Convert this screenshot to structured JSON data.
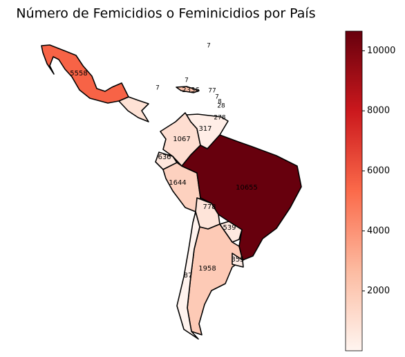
{
  "chart_data": {
    "type": "choropleth",
    "title": "Número de Femicidios o Feminicidios por País",
    "regions": [
      {
        "value": 5558
      },
      {
        "value": 1067
      },
      {
        "value": 317
      },
      {
        "value": 636
      },
      {
        "value": 1644
      },
      {
        "value": 10655
      },
      {
        "value": 778
      },
      {
        "value": 539
      },
      {
        "value": 1958
      },
      {
        "value": 87
      },
      {
        "value": 355
      },
      {
        "value": 2336
      }
    ],
    "small_labels": [
      {
        "value": 7
      },
      {
        "value": 7
      },
      {
        "value": 7
      },
      {
        "value": 77
      },
      {
        "value": 7
      },
      {
        "value": 8
      },
      {
        "value": 28
      },
      {
        "value": 278
      }
    ],
    "colormap": [
      "#fff5f0",
      "#fcbba1",
      "#fb6a4a",
      "#cb181d",
      "#67000d"
    ],
    "clim": [
      7,
      10655
    ],
    "colorbar_ticks": [
      2000,
      4000,
      6000,
      8000,
      10000
    ]
  }
}
